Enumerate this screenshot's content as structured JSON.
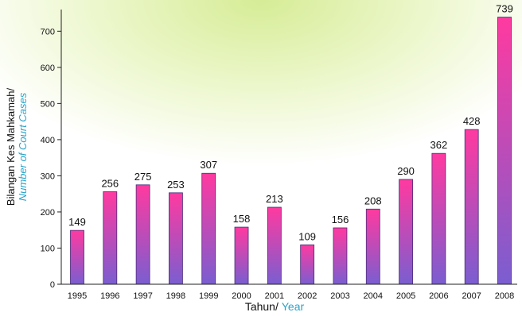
{
  "chart_data": {
    "type": "bar",
    "categories": [
      "1995",
      "1996",
      "1997",
      "1998",
      "1999",
      "2000",
      "2001",
      "2002",
      "2003",
      "2004",
      "2005",
      "2006",
      "2007",
      "2008"
    ],
    "values": [
      149,
      256,
      275,
      253,
      307,
      158,
      213,
      109,
      156,
      208,
      290,
      362,
      428,
      739
    ],
    "ylim": [
      0,
      760
    ],
    "yticks": [
      0,
      100,
      200,
      300,
      400,
      500,
      600,
      700
    ],
    "ylabel_line1": "Bilangan Kes Mahkamah/",
    "ylabel_line2": "Number of Court Cases",
    "xlabel_part1": "Tahun/",
    "xlabel_part2": "Year",
    "grid": false,
    "bar_gradient": {
      "top": "#ff3aa0",
      "bottom": "#7a5ed0"
    },
    "secondary_text_color": "#29a3c9"
  }
}
